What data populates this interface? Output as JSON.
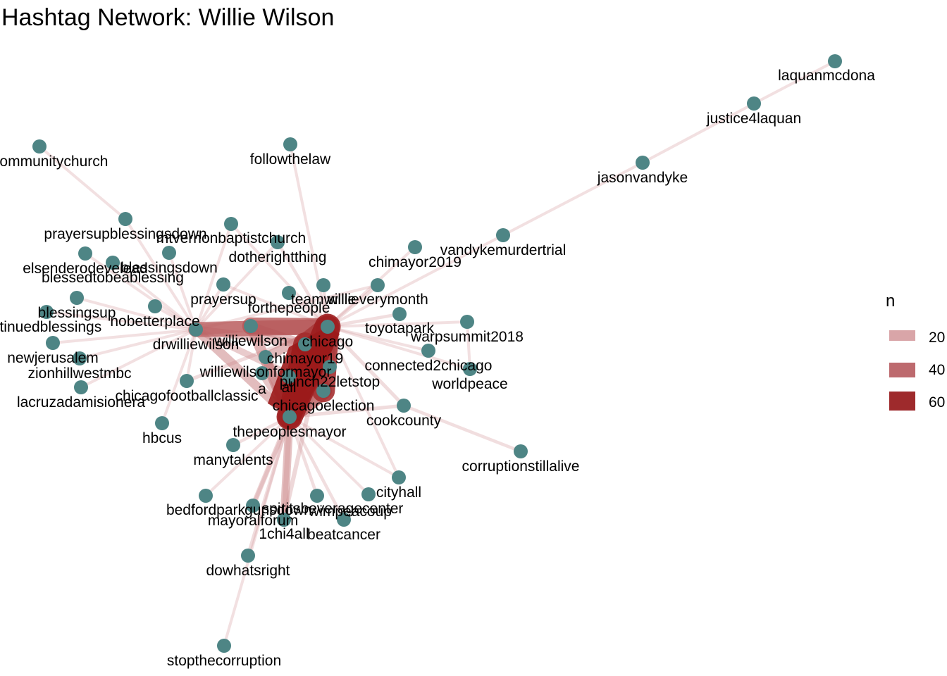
{
  "title": "Hashtag Network: Willie Wilson",
  "colors": {
    "node": "#4e8585",
    "edge_low": "#d9a5a8",
    "edge_high": "#9b1a1a"
  },
  "legend": {
    "title": "n",
    "entries": [
      {
        "label": "20",
        "value": 20,
        "color": "#d9a5a8"
      },
      {
        "label": "40",
        "value": 40,
        "color": "#bd6a6e"
      },
      {
        "label": "60",
        "value": 60,
        "color": "#9e2a2c"
      }
    ]
  },
  "nodes": [
    {
      "id": "laquanmcdonald",
      "label": "laquanmcdona"
    },
    {
      "id": "justice4laquan",
      "label": "justice4laquan"
    },
    {
      "id": "jasonvandyke",
      "label": "jasonvandyke"
    },
    {
      "id": "vandykemurdertrial",
      "label": "vandykemurdertrial"
    },
    {
      "id": "followthelaw",
      "label": "followthelaw"
    },
    {
      "id": "morecommunitychurch",
      "label": "orecommunitychurch"
    },
    {
      "id": "prayersupblessingsdown",
      "label": "prayersupblessingsdown"
    },
    {
      "id": "mtvernonbaptistchurch",
      "label": "mtvernonbaptistchurch"
    },
    {
      "id": "dotherightthing",
      "label": "dotherightthing"
    },
    {
      "id": "elsenderodevelead",
      "label": "elsenderodevelead"
    },
    {
      "id": "blessingsdown",
      "label": "blessingsdown"
    },
    {
      "id": "blessedtobeablessing",
      "label": "blessedtobeablessing"
    },
    {
      "id": "chimayor2019",
      "label": "chimayor2019"
    },
    {
      "id": "prayersup",
      "label": "prayersup"
    },
    {
      "id": "forthepeople",
      "label": "forthepeople"
    },
    {
      "id": "teamwillie",
      "label": "teamwillie"
    },
    {
      "id": "willieverymonth",
      "label": "willieverymonth"
    },
    {
      "id": "blessingsup",
      "label": "blessingsup"
    },
    {
      "id": "continuedblessings",
      "label": "ntinuedblessings"
    },
    {
      "id": "nobetterplace",
      "label": "nobetterplace"
    },
    {
      "id": "toyotapark",
      "label": "toyotapark"
    },
    {
      "id": "drwilliewilson",
      "label": "drwilliewilson"
    },
    {
      "id": "williewilson",
      "label": "williewilson"
    },
    {
      "id": "chicago",
      "label": "chicago"
    },
    {
      "id": "warpsummit2018",
      "label": "warpsummit2018"
    },
    {
      "id": "newjerusalem",
      "label": "newjerusalem"
    },
    {
      "id": "chimayor19",
      "label": "chimayor19"
    },
    {
      "id": "connected2chicago",
      "label": "connected2chicago"
    },
    {
      "id": "worldpeace",
      "label": "worldpeace"
    },
    {
      "id": "zionhillwestmbc",
      "label": "zionhillwestmbc"
    },
    {
      "id": "williewilsonformayor",
      "label": "williewilsonformayor"
    },
    {
      "id": "lacruzadamisionera",
      "label": "lacruzadamisionera"
    },
    {
      "id": "chicagofootballclassic",
      "label": "chicagofootballclassic"
    },
    {
      "id": "punch22letstop",
      "label": "punch22letstop"
    },
    {
      "id": "a",
      "label": "a"
    },
    {
      "id": "all",
      "label": "all"
    },
    {
      "id": "chicagoelection",
      "label": "chicagoelection"
    },
    {
      "id": "cookcounty",
      "label": "cookcounty"
    },
    {
      "id": "hbcus",
      "label": "hbcus"
    },
    {
      "id": "thepeoplesmayor",
      "label": "thepeoplesmayor"
    },
    {
      "id": "manytalents",
      "label": "manytalents"
    },
    {
      "id": "corruptionstillalive",
      "label": "corruptionstillalive"
    },
    {
      "id": "cityhall",
      "label": "cityhall"
    },
    {
      "id": "bedfordpark",
      "label": "bedfordpark"
    },
    {
      "id": "gunsdown",
      "label": "gunsdown"
    },
    {
      "id": "spiritsbeveragecenter",
      "label": "spiritsbeveragecenter"
    },
    {
      "id": "mayoralforum",
      "label": "mayoralforum"
    },
    {
      "id": "wimpeacoup",
      "label": "wimpeacoup"
    },
    {
      "id": "1chi4all",
      "label": "1chi4all"
    },
    {
      "id": "beatcancer",
      "label": "beatcancer"
    },
    {
      "id": "dowhatsright",
      "label": "dowhatsright"
    },
    {
      "id": "stopthecorruption",
      "label": "stopthecorruption"
    }
  ],
  "edges": [
    {
      "s": "laquanmcdonald",
      "t": "justice4laquan",
      "n": 8
    },
    {
      "s": "justice4laquan",
      "t": "jasonvandyke",
      "n": 8
    },
    {
      "s": "jasonvandyke",
      "t": "vandykemurdertrial",
      "n": 8
    },
    {
      "s": "vandykemurdertrial",
      "t": "chicago",
      "n": 8
    },
    {
      "s": "followthelaw",
      "t": "chicago",
      "n": 8
    },
    {
      "s": "morecommunitychurch",
      "t": "prayersupblessingsdown",
      "n": 8
    },
    {
      "s": "prayersupblessingsdown",
      "t": "drwilliewilson",
      "n": 8
    },
    {
      "s": "mtvernonbaptistchurch",
      "t": "drwilliewilson",
      "n": 8
    },
    {
      "s": "mtvernonbaptistchurch",
      "t": "chicago",
      "n": 8
    },
    {
      "s": "dotherightthing",
      "t": "chicago",
      "n": 9
    },
    {
      "s": "dotherightthing",
      "t": "drwilliewilson",
      "n": 8
    },
    {
      "s": "elsenderodevelead",
      "t": "drwilliewilson",
      "n": 8
    },
    {
      "s": "blessingsdown",
      "t": "drwilliewilson",
      "n": 8
    },
    {
      "s": "blessedtobeablessing",
      "t": "drwilliewilson",
      "n": 8
    },
    {
      "s": "chimayor2019",
      "t": "chicago",
      "n": 8
    },
    {
      "s": "prayersup",
      "t": "drwilliewilson",
      "n": 8
    },
    {
      "s": "prayersup",
      "t": "chicago",
      "n": 8
    },
    {
      "s": "forthepeople",
      "t": "chicago",
      "n": 9
    },
    {
      "s": "teamwillie",
      "t": "chicago",
      "n": 9
    },
    {
      "s": "willieverymonth",
      "t": "chicago",
      "n": 10
    },
    {
      "s": "willieverymonth",
      "t": "drwilliewilson",
      "n": 8
    },
    {
      "s": "blessingsup",
      "t": "drwilliewilson",
      "n": 8
    },
    {
      "s": "continuedblessings",
      "t": "drwilliewilson",
      "n": 8
    },
    {
      "s": "nobetterplace",
      "t": "drwilliewilson",
      "n": 8
    },
    {
      "s": "toyotapark",
      "t": "chicago",
      "n": 9
    },
    {
      "s": "drwilliewilson",
      "t": "williewilson",
      "n": 30
    },
    {
      "s": "drwilliewilson",
      "t": "chicago",
      "n": 40
    },
    {
      "s": "drwilliewilson",
      "t": "chimayor19",
      "n": 22
    },
    {
      "s": "drwilliewilson",
      "t": "thepeoplesmayor",
      "n": 24
    },
    {
      "s": "drwilliewilson",
      "t": "chicagoelection",
      "n": 18
    },
    {
      "s": "williewilson",
      "t": "chicago",
      "n": 45
    },
    {
      "s": "williewilson",
      "t": "chimayor19",
      "n": 22
    },
    {
      "s": "williewilson",
      "t": "thepeoplesmayor",
      "n": 28
    },
    {
      "s": "chicago",
      "t": "chimayor19",
      "n": 55
    },
    {
      "s": "chicago",
      "t": "thepeoplesmayor",
      "n": 68
    },
    {
      "s": "chicago",
      "t": "chicagoelection",
      "n": 60
    },
    {
      "s": "chicago",
      "t": "punch22letstop",
      "n": 30
    },
    {
      "s": "chimayor19",
      "t": "thepeoplesmayor",
      "n": 62
    },
    {
      "s": "chimayor19",
      "t": "chicagoelection",
      "n": 40
    },
    {
      "s": "williewilsonformayor",
      "t": "thepeoplesmayor",
      "n": 25
    },
    {
      "s": "williewilsonformayor",
      "t": "chicago",
      "n": 25
    },
    {
      "s": "warpsummit2018",
      "t": "worldpeace",
      "n": 8
    },
    {
      "s": "warpsummit2018",
      "t": "chicago",
      "n": 8
    },
    {
      "s": "connected2chicago",
      "t": "chicago",
      "n": 8
    },
    {
      "s": "worldpeace",
      "t": "chicago",
      "n": 8
    },
    {
      "s": "newjerusalem",
      "t": "drwilliewilson",
      "n": 8
    },
    {
      "s": "zionhillwestmbc",
      "t": "drwilliewilson",
      "n": 8
    },
    {
      "s": "lacruzadamisionera",
      "t": "drwilliewilson",
      "n": 8
    },
    {
      "s": "chicagofootballclassic",
      "t": "chicago",
      "n": 10
    },
    {
      "s": "chicagofootballclassic",
      "t": "drwilliewilson",
      "n": 8
    },
    {
      "s": "a",
      "t": "thepeoplesmayor",
      "n": 20
    },
    {
      "s": "all",
      "t": "thepeoplesmayor",
      "n": 20
    },
    {
      "s": "chicagoelection",
      "t": "thepeoplesmayor",
      "n": 45
    },
    {
      "s": "cookcounty",
      "t": "chicago",
      "n": 10
    },
    {
      "s": "cookcounty",
      "t": "thepeoplesmayor",
      "n": 10
    },
    {
      "s": "cookcounty",
      "t": "corruptionstillalive",
      "n": 9
    },
    {
      "s": "hbcus",
      "t": "drwilliewilson",
      "n": 8
    },
    {
      "s": "manytalents",
      "t": "thepeoplesmayor",
      "n": 9
    },
    {
      "s": "cityhall",
      "t": "thepeoplesmayor",
      "n": 8
    },
    {
      "s": "cityhall",
      "t": "chicago",
      "n": 8
    },
    {
      "s": "bedfordpark",
      "t": "thepeoplesmayor",
      "n": 8
    },
    {
      "s": "gunsdown",
      "t": "thepeoplesmayor",
      "n": 14
    },
    {
      "s": "gunsdown",
      "t": "chicago",
      "n": 10
    },
    {
      "s": "spiritsbeveragecenter",
      "t": "thepeoplesmayor",
      "n": 9
    },
    {
      "s": "mayoralforum",
      "t": "thepeoplesmayor",
      "n": 14
    },
    {
      "s": "wimpeacoup",
      "t": "thepeoplesmayor",
      "n": 8
    },
    {
      "s": "1chi4all",
      "t": "thepeoplesmayor",
      "n": 22
    },
    {
      "s": "1chi4all",
      "t": "chicago",
      "n": 12
    },
    {
      "s": "beatcancer",
      "t": "thepeoplesmayor",
      "n": 9
    },
    {
      "s": "dowhatsright",
      "t": "thepeoplesmayor",
      "n": 10
    },
    {
      "s": "stopthecorruption",
      "t": "thepeoplesmayor",
      "n": 8
    },
    {
      "s": "punch22letstop",
      "t": "thepeoplesmayor",
      "n": 30
    }
  ]
}
